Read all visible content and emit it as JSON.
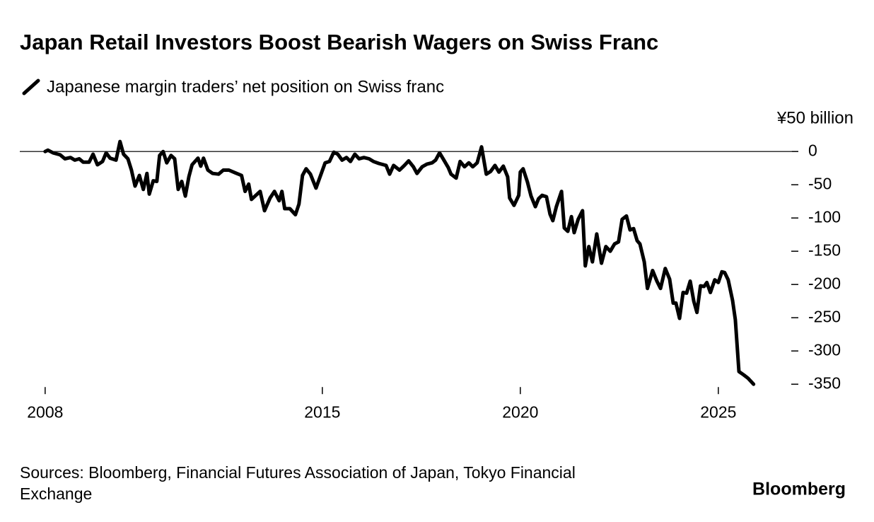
{
  "chart_data": {
    "type": "line",
    "title": "Japan Retail Investors Boost Bearish Wagers on Swiss Franc",
    "ylabel": "¥50 billion",
    "source": "Sources: Bloomberg, Financial Futures Association of Japan, Tokyo Financial Exchange",
    "brand": "Bloomberg",
    "x": [
      2008.0,
      2008.07,
      2008.2,
      2008.38,
      2008.5,
      2008.64,
      2008.75,
      2008.86,
      2008.96,
      2009.11,
      2009.21,
      2009.32,
      2009.45,
      2009.54,
      2009.64,
      2009.79,
      2009.89,
      2009.98,
      2010.09,
      2010.18,
      2010.27,
      2010.38,
      2010.48,
      2010.57,
      2010.63,
      2010.73,
      2010.82,
      2010.89,
      2010.98,
      2011.07,
      2011.18,
      2011.27,
      2011.36,
      2011.45,
      2011.54,
      2011.63,
      2011.71,
      2011.86,
      2011.93,
      2012.0,
      2012.11,
      2012.23,
      2012.38,
      2012.5,
      2012.64,
      2012.8,
      2012.96,
      2013.05,
      2013.14,
      2013.21,
      2013.32,
      2013.43,
      2013.54,
      2013.68,
      2013.79,
      2013.91,
      2013.98,
      2014.05,
      2014.18,
      2014.32,
      2014.41,
      2014.5,
      2014.59,
      2014.7,
      2014.84,
      2014.98,
      2015.07,
      2015.18,
      2015.29,
      2015.39,
      2015.5,
      2015.61,
      2015.71,
      2015.82,
      2015.93,
      2016.05,
      2016.18,
      2016.29,
      2016.43,
      2016.61,
      2016.7,
      2016.8,
      2016.95,
      2017.07,
      2017.18,
      2017.3,
      2017.39,
      2017.52,
      2017.64,
      2017.77,
      2017.86,
      2017.96,
      2018.07,
      2018.18,
      2018.25,
      2018.38,
      2018.48,
      2018.59,
      2018.7,
      2018.8,
      2018.91,
      2019.02,
      2019.14,
      2019.25,
      2019.36,
      2019.46,
      2019.57,
      2019.68,
      2019.73,
      2019.84,
      2019.96,
      2020.0,
      2020.07,
      2020.18,
      2020.27,
      2020.38,
      2020.46,
      2020.55,
      2020.66,
      2020.75,
      2020.82,
      2020.91,
      2021.04,
      2021.11,
      2021.2,
      2021.29,
      2021.36,
      2021.46,
      2021.57,
      2021.64,
      2021.73,
      2021.82,
      2021.93,
      2022.05,
      2022.16,
      2022.27,
      2022.38,
      2022.48,
      2022.57,
      2022.68,
      2022.77,
      2022.86,
      2022.95,
      2023.02,
      2023.13,
      2023.21,
      2023.34,
      2023.45,
      2023.54,
      2023.66,
      2023.77,
      2023.86,
      2023.93,
      2024.02,
      2024.11,
      2024.2,
      2024.29,
      2024.38,
      2024.46,
      2024.55,
      2024.64,
      2024.71,
      2024.8,
      2024.91,
      2025.0,
      2025.09,
      2025.16,
      2025.25,
      2025.36,
      2025.43,
      2025.52,
      2025.64,
      2025.75,
      2025.89
    ],
    "series": [
      {
        "name": "Japanese margin traders’ net position on Swiss franc",
        "color": "#000000",
        "values": [
          0,
          2,
          -2,
          -5,
          -11,
          -9,
          -13,
          -11,
          -16,
          -16,
          -4,
          -20,
          -15,
          -2,
          -10,
          -13,
          15,
          -4,
          -11,
          -28,
          -52,
          -36,
          -57,
          -33,
          -64,
          -44,
          -45,
          -6,
          0,
          -17,
          -6,
          -11,
          -57,
          -45,
          -67,
          -38,
          -20,
          -10,
          -22,
          -10,
          -28,
          -33,
          -34,
          -28,
          -28,
          -32,
          -36,
          -60,
          -49,
          -72,
          -66,
          -60,
          -89,
          -70,
          -60,
          -74,
          -60,
          -86,
          -86,
          -95,
          -79,
          -36,
          -26,
          -34,
          -55,
          -32,
          -17,
          -15,
          -1,
          -4,
          -13,
          -9,
          -15,
          -4,
          -11,
          -9,
          -11,
          -15,
          -18,
          -21,
          -34,
          -21,
          -28,
          -21,
          -14,
          -23,
          -33,
          -23,
          -19,
          -17,
          -13,
          -2,
          -13,
          -24,
          -34,
          -40,
          -15,
          -23,
          -17,
          -23,
          -17,
          7,
          -34,
          -30,
          -21,
          -31,
          -22,
          -38,
          -70,
          -81,
          -66,
          -31,
          -26,
          -46,
          -67,
          -83,
          -71,
          -66,
          -68,
          -94,
          -104,
          -83,
          -60,
          -115,
          -120,
          -98,
          -122,
          -102,
          -89,
          -172,
          -143,
          -166,
          -124,
          -168,
          -143,
          -150,
          -139,
          -136,
          -102,
          -97,
          -118,
          -116,
          -134,
          -139,
          -166,
          -206,
          -179,
          -195,
          -206,
          -176,
          -192,
          -228,
          -228,
          -251,
          -212,
          -213,
          -195,
          -225,
          -242,
          -202,
          -203,
          -197,
          -212,
          -193,
          -197,
          -181,
          -182,
          -193,
          -224,
          -253,
          -331,
          -336,
          -341,
          -350
        ]
      }
    ],
    "xlim": [
      2007.36,
      2026.86
    ],
    "ylim": [
      -370,
      30
    ],
    "xticks": [
      2008,
      2015,
      2020,
      2025
    ],
    "yticks": [
      0,
      -50,
      -100,
      -150,
      -200,
      -250,
      -300,
      -350
    ],
    "zero_line": true
  }
}
